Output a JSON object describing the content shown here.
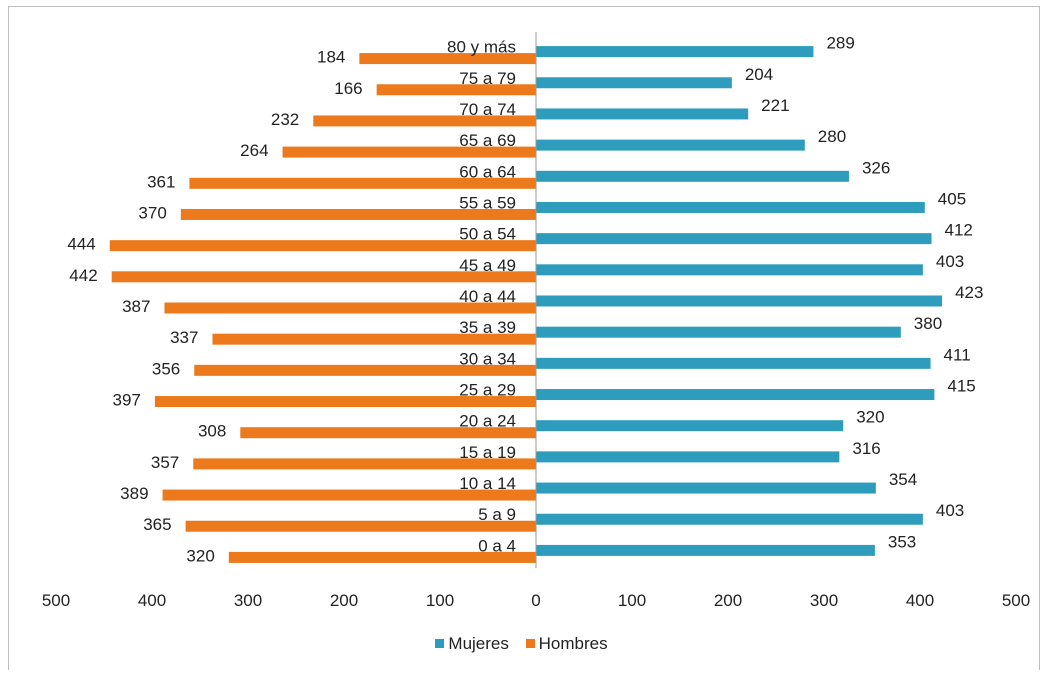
{
  "chart_data": {
    "type": "bar",
    "orientation": "horizontal",
    "layout": "population-pyramid",
    "categories": [
      "80 y más",
      "75 a 79",
      "70 a 74",
      "65 a 69",
      "60 a 64",
      "55 a 59",
      "50 a 54",
      "45 a 49",
      "40 a 44",
      "35 a 39",
      "30 a 34",
      "25 a 29",
      "20 a 24",
      "15 a 19",
      "10 a 14",
      "5 a 9",
      "0 a 4"
    ],
    "series": [
      {
        "name": "Mujeres",
        "color": "#2e9dbd",
        "side": "right",
        "values": [
          289,
          204,
          221,
          280,
          326,
          405,
          412,
          403,
          423,
          380,
          411,
          415,
          320,
          316,
          354,
          403,
          353
        ]
      },
      {
        "name": "Hombres",
        "color": "#ec7a1c",
        "side": "left",
        "values": [
          184,
          166,
          232,
          264,
          361,
          370,
          444,
          442,
          387,
          337,
          356,
          397,
          308,
          357,
          389,
          365,
          320
        ]
      }
    ],
    "xticks": [
      "500",
      "400",
      "300",
      "200",
      "100",
      "0",
      "100",
      "200",
      "300",
      "400",
      "500"
    ],
    "xlim": [
      -500,
      500
    ],
    "legend_position": "bottom",
    "grid": false
  }
}
